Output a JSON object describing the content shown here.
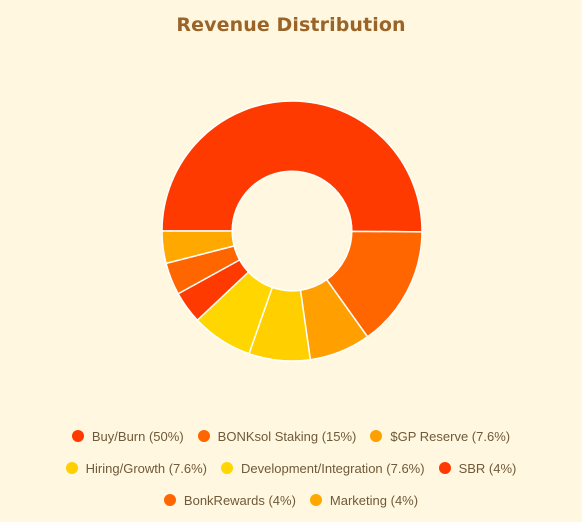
{
  "chart_data": {
    "type": "pie",
    "title": "Revenue Distribution",
    "categories": [
      "Buy/Burn",
      "BONKsol Staking",
      "$GP Reserve",
      "Hiring/Growth",
      "Development/Integration",
      "SBR",
      "BonkRewards",
      "Marketing"
    ],
    "values": [
      50,
      15,
      7.6,
      7.6,
      7.6,
      4,
      4,
      4
    ],
    "legend_labels": [
      "Buy/Burn (50%)",
      "BONKsol Staking (15%)",
      "$GP Reserve (7.6%)",
      "Hiring/Growth (7.6%)",
      "Development/Integration (7.6%)",
      "SBR (4%)",
      "BonkRewards (4%)",
      "Marketing (4%)"
    ],
    "colors": [
      "#ff3a00",
      "#ff6600",
      "#ff9f00",
      "#ffcf00",
      "#ffd600",
      "#ff3a00",
      "#ff6600",
      "#ffa800"
    ],
    "legend_placement": "bottom",
    "inner_radius_ratio": 0.46
  }
}
